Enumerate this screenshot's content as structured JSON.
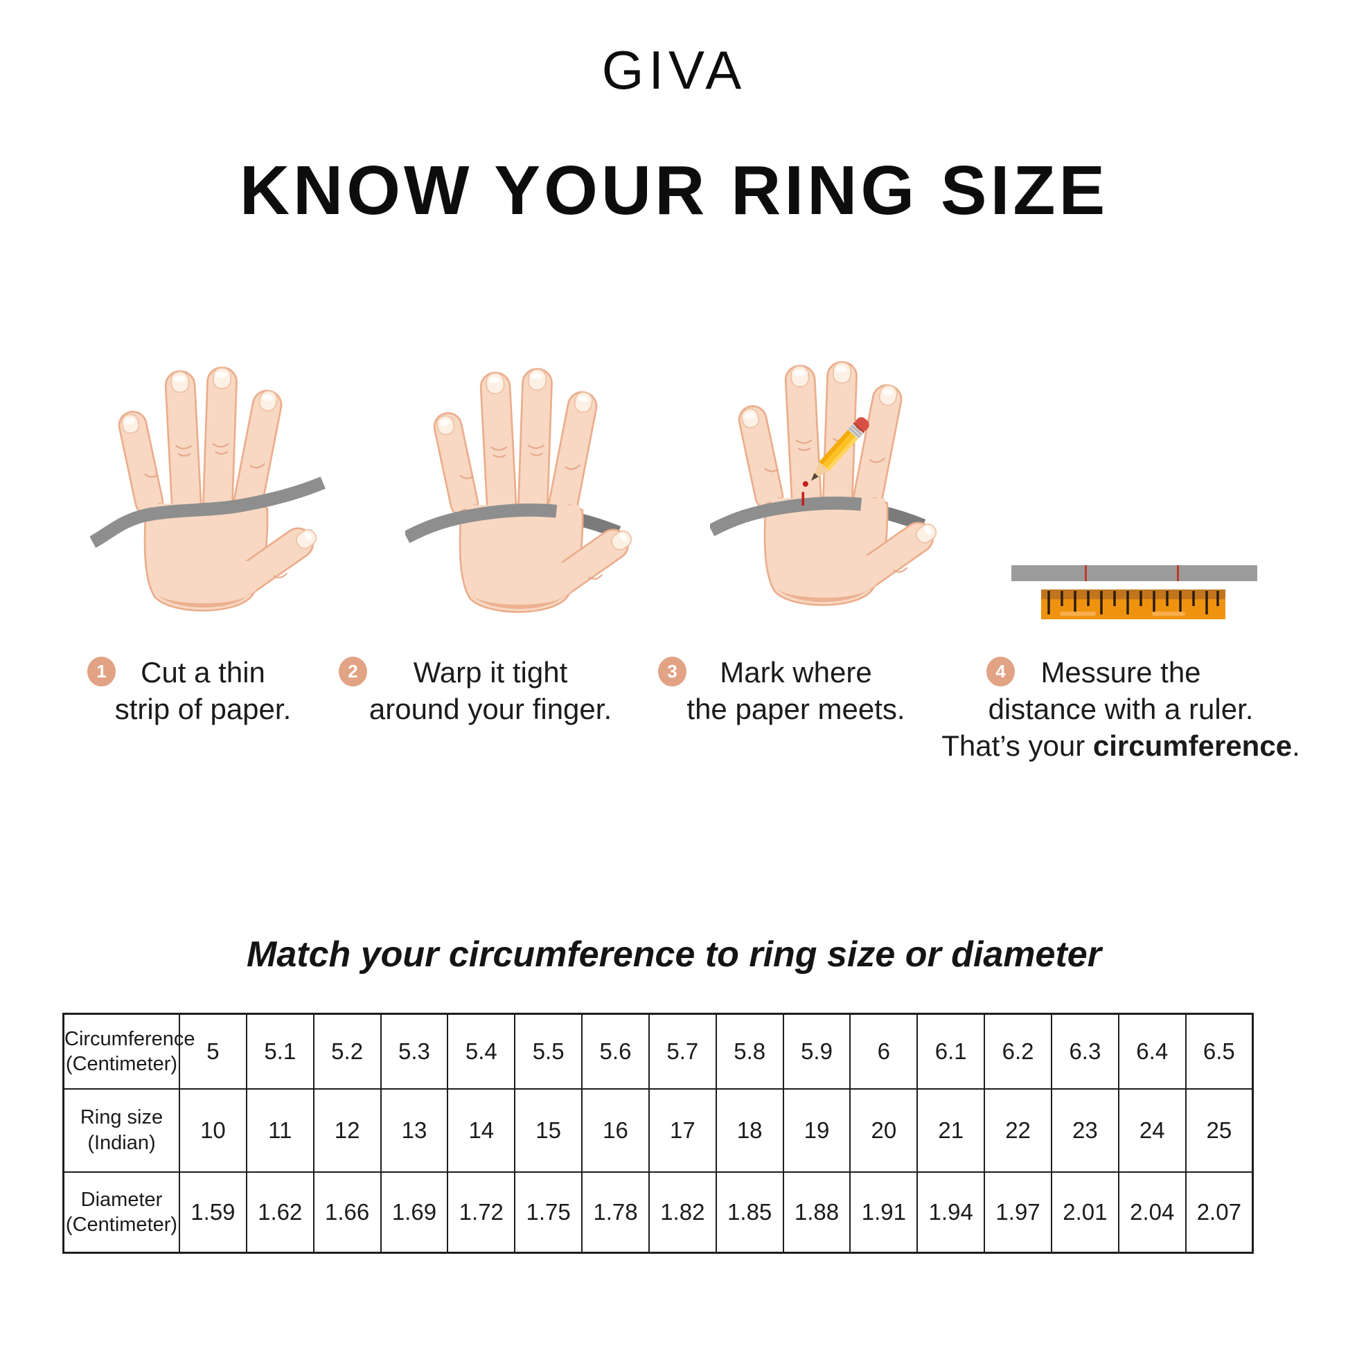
{
  "brand": "GIVA",
  "title": "KNOW YOUR RING SIZE",
  "steps": [
    {
      "num": "1",
      "lines": [
        "Cut a thin",
        "strip of paper."
      ]
    },
    {
      "num": "2",
      "lines": [
        "Warp it tight",
        "around your finger."
      ]
    },
    {
      "num": "3",
      "lines": [
        "Mark where",
        "the paper meets."
      ]
    },
    {
      "num": "4",
      "lines": [
        "Messure the",
        "distance with a ruler."
      ],
      "line3": {
        "prefix": "That’s your ",
        "bold": "circumference",
        "suffix": "."
      }
    }
  ],
  "illustrations": {
    "step1": "hand-with-paper-strip-icon",
    "step2": "hand-strip-wrapped-around-finger-icon",
    "step3": "hand-pencil-marking-icon",
    "step4": "paper-strip-and-ruler-icon"
  },
  "colors": {
    "badge": "#E2A284",
    "skin": "#F8D8C2",
    "skin_outline": "#EBAD8C",
    "strip_gray": "#8E8E8E",
    "ruler_orange": "#EF930E",
    "ruler_top": "#C1751C",
    "mark_red": "#C21D1D",
    "pencil_yellow": "#FFC226",
    "eraser_red": "#D85045"
  },
  "table_title": "Match your circumference to ring size or diameter",
  "table": {
    "rows": [
      {
        "label1": "Circumference",
        "label2": "(Centimeter)",
        "values": [
          "5",
          "5.1",
          "5.2",
          "5.3",
          "5.4",
          "5.5",
          "5.6",
          "5.7",
          "5.8",
          "5.9",
          "6",
          "6.1",
          "6.2",
          "6.3",
          "6.4",
          "6.5"
        ]
      },
      {
        "label1": "Ring size",
        "label2": "(Indian)",
        "values": [
          "10",
          "11",
          "12",
          "13",
          "14",
          "15",
          "16",
          "17",
          "18",
          "19",
          "20",
          "21",
          "22",
          "23",
          "24",
          "25"
        ]
      },
      {
        "label1": "Diameter",
        "label2": "(Centimeter)",
        "values": [
          "1.59",
          "1.62",
          "1.66",
          "1.69",
          "1.72",
          "1.75",
          "1.78",
          "1.82",
          "1.85",
          "1.88",
          "1.91",
          "1.94",
          "1.97",
          "2.01",
          "2.04",
          "2.07"
        ]
      }
    ]
  },
  "chart_data": {
    "type": "table",
    "title": "Match your circumference to ring size or diameter",
    "rows": [
      {
        "label": "Circumference (Centimeter)",
        "values": [
          5,
          5.1,
          5.2,
          5.3,
          5.4,
          5.5,
          5.6,
          5.7,
          5.8,
          5.9,
          6,
          6.1,
          6.2,
          6.3,
          6.4,
          6.5
        ]
      },
      {
        "label": "Ring size (Indian)",
        "values": [
          10,
          11,
          12,
          13,
          14,
          15,
          16,
          17,
          18,
          19,
          20,
          21,
          22,
          23,
          24,
          25
        ]
      },
      {
        "label": "Diameter (Centimeter)",
        "values": [
          1.59,
          1.62,
          1.66,
          1.69,
          1.72,
          1.75,
          1.78,
          1.82,
          1.85,
          1.88,
          1.91,
          1.94,
          1.97,
          2.01,
          2.04,
          2.07
        ]
      }
    ]
  }
}
